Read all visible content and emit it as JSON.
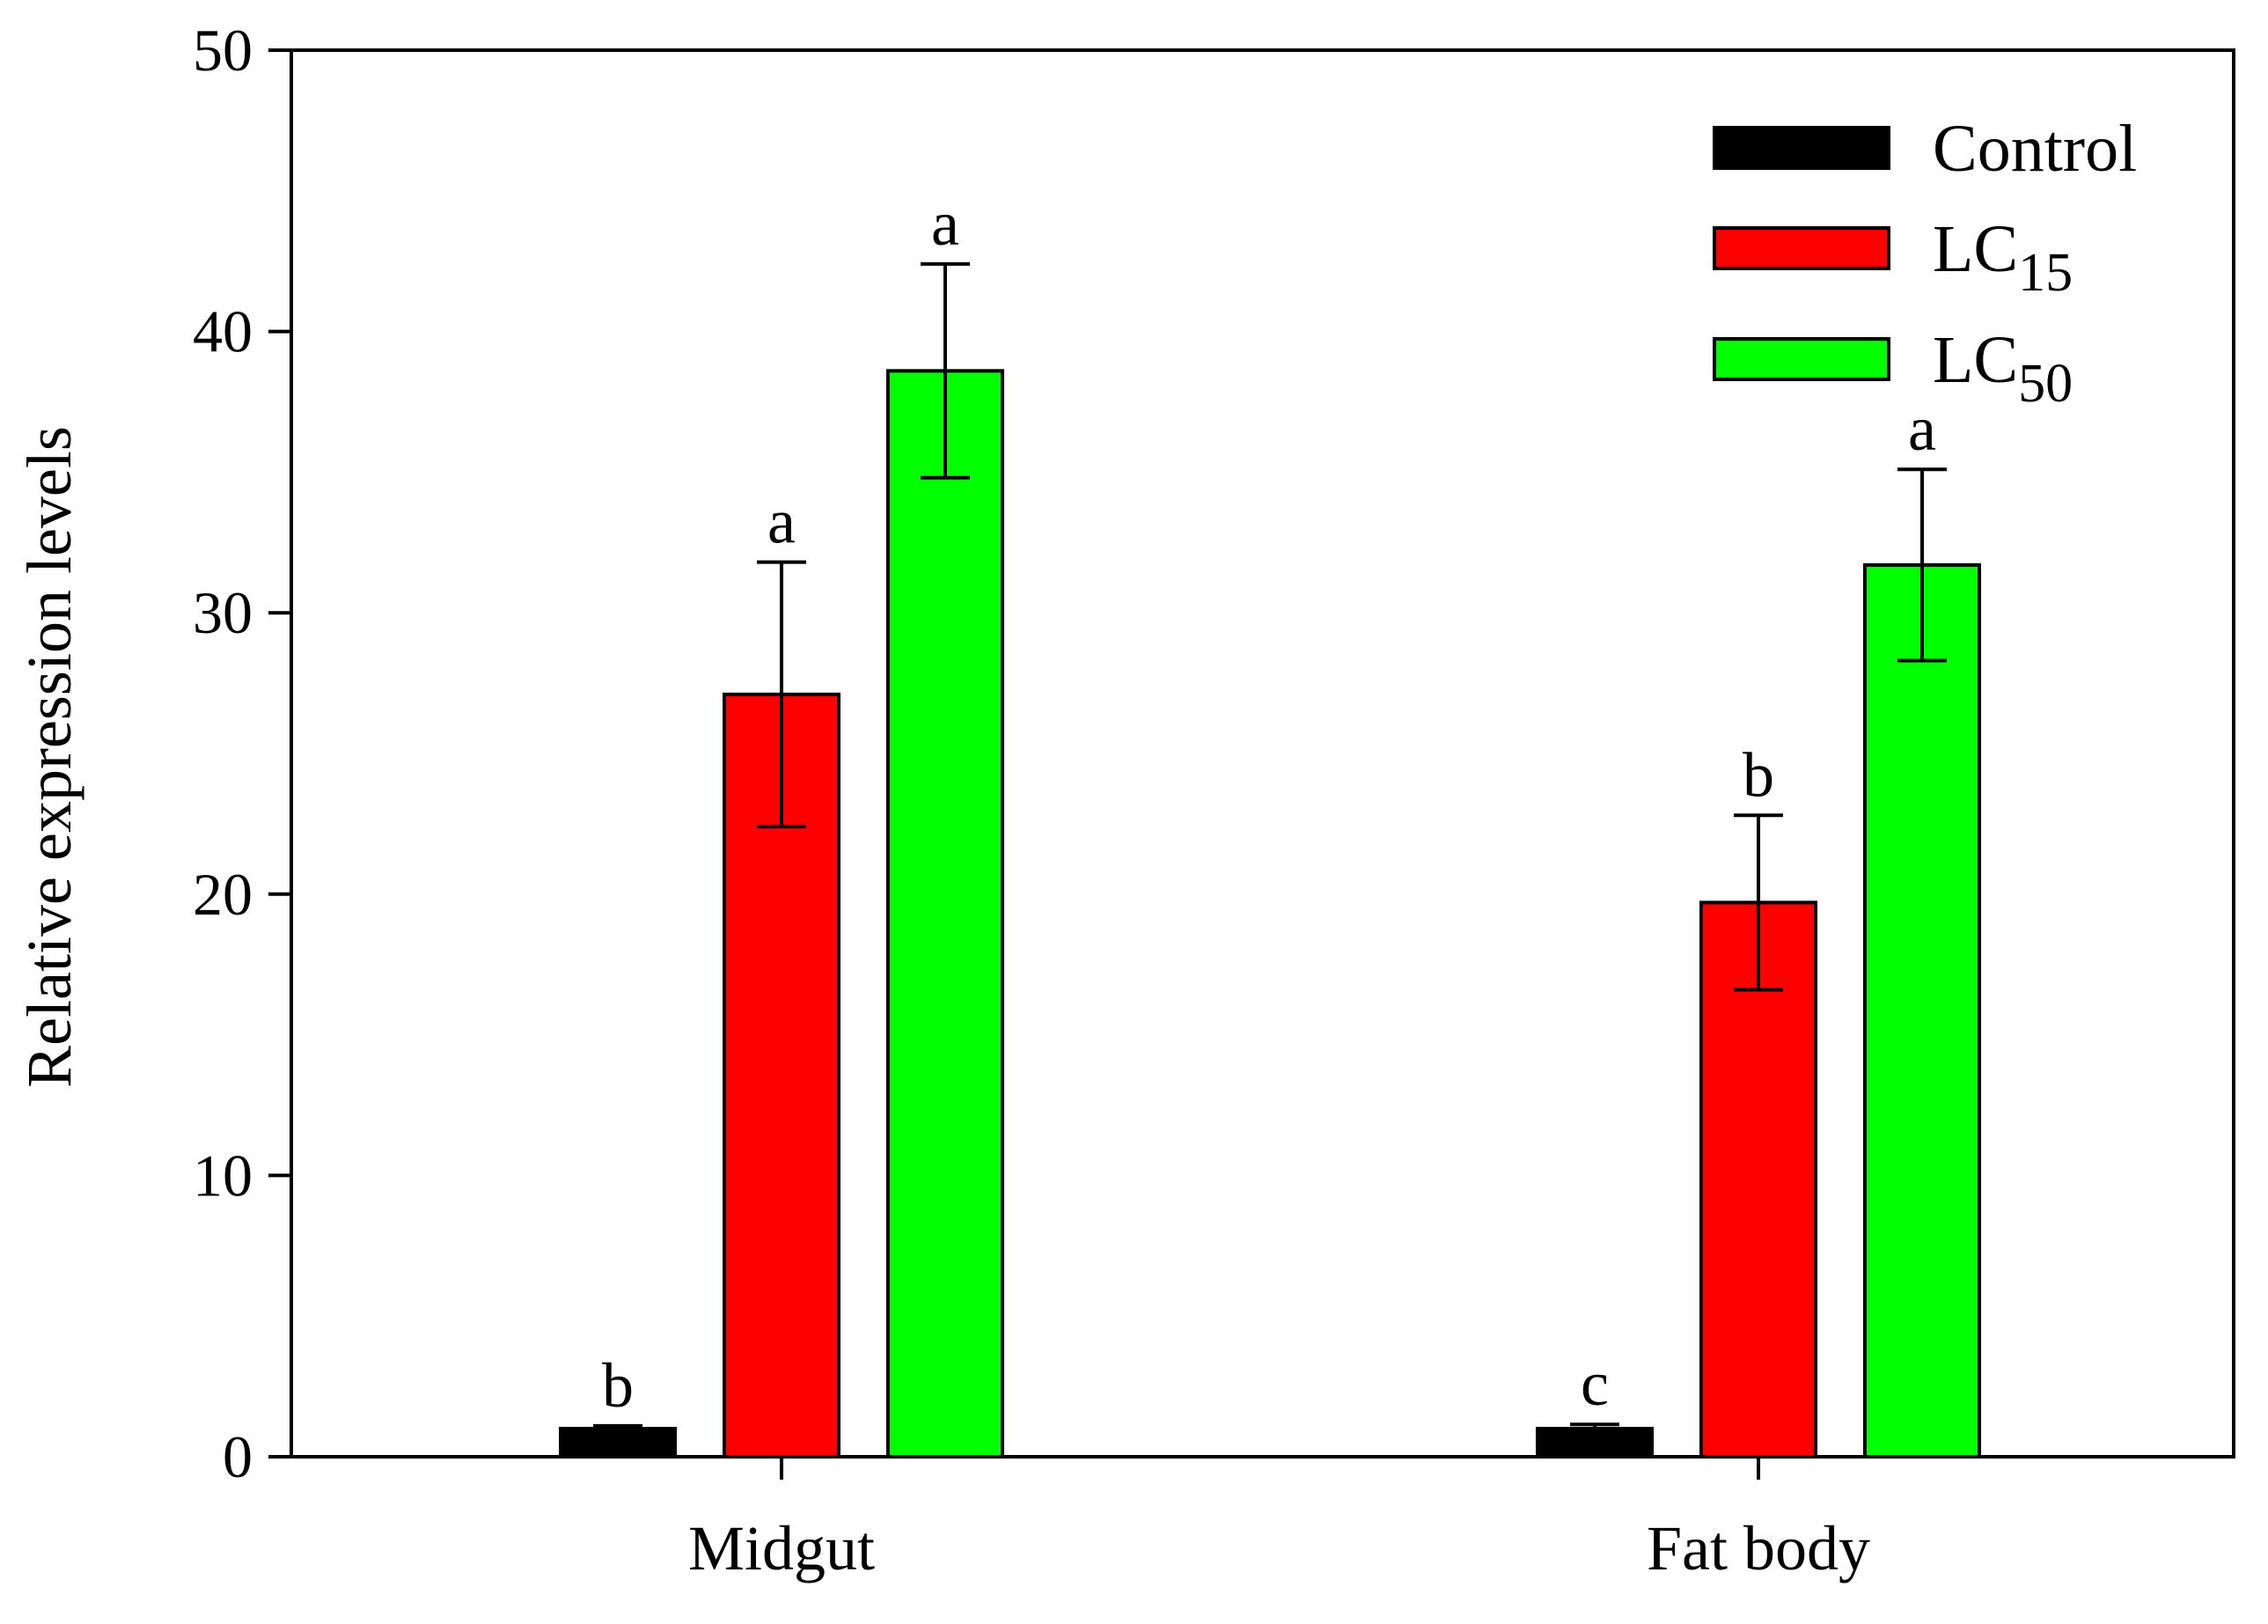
{
  "chart_data": {
    "type": "bar",
    "title": "",
    "xlabel": "",
    "ylabel": "Relative expression levels",
    "ylim": [
      0,
      50
    ],
    "yticks": [
      0,
      10,
      20,
      30,
      40,
      50
    ],
    "grid": false,
    "legend_position": "top-right",
    "categories": [
      "Midgut",
      "Fat body"
    ],
    "series": [
      {
        "name": "Control",
        "legend_main": "Control",
        "legend_sub": "",
        "color": "#000000",
        "values": [
          1.0,
          1.0
        ],
        "errors": [
          0.1,
          0.15
        ],
        "significance": [
          "b",
          "c"
        ]
      },
      {
        "name": "LC15",
        "legend_main": "LC",
        "legend_sub": "15",
        "color": "#ff0000",
        "values": [
          27.1,
          19.7
        ],
        "errors": [
          4.7,
          3.1
        ],
        "significance": [
          "a",
          "b"
        ]
      },
      {
        "name": "LC50",
        "legend_main": "LC",
        "legend_sub": "50",
        "color": "#00ff00",
        "values": [
          38.6,
          31.7
        ],
        "errors": [
          3.8,
          3.4
        ],
        "significance": [
          "a",
          "a"
        ]
      }
    ]
  }
}
